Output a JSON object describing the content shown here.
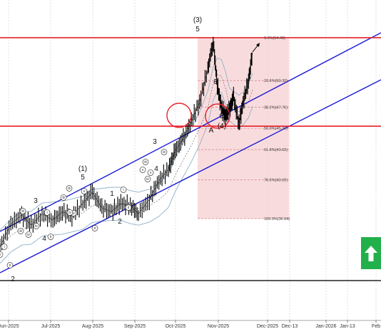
{
  "chart_data": {
    "type": "line",
    "instrument_note": "",
    "x_ticks": [
      "Jun-2025",
      "Jul-2025",
      "Aug-2025",
      "Sep-2025",
      "Oct-2025",
      "Nov-2025",
      "Dec-2025",
      "Dec-13",
      "Jan-2026",
      "Jan-13",
      "Feb"
    ],
    "price_series": [
      {
        "date": "2025-05-20",
        "price": 34.2
      },
      {
        "date": "2025-05-28",
        "price": 36.4
      },
      {
        "date": "2025-06-05",
        "price": 37.3
      },
      {
        "date": "2025-06-12",
        "price": 36.3
      },
      {
        "date": "2025-06-20",
        "price": 37.4
      },
      {
        "date": "2025-06-28",
        "price": 36.8
      },
      {
        "date": "2025-07-05",
        "price": 37.6
      },
      {
        "date": "2025-07-12",
        "price": 37.2
      },
      {
        "date": "2025-07-20",
        "price": 38.4
      },
      {
        "date": "2025-07-27",
        "price": 39.5
      },
      {
        "date": "2025-08-03",
        "price": 38.0
      },
      {
        "date": "2025-08-10",
        "price": 37.6
      },
      {
        "date": "2025-08-17",
        "price": 38.4
      },
      {
        "date": "2025-08-24",
        "price": 38.2
      },
      {
        "date": "2025-08-30",
        "price": 37.4
      },
      {
        "date": "2025-09-07",
        "price": 38.8
      },
      {
        "date": "2025-09-14",
        "price": 40.6
      },
      {
        "date": "2025-09-21",
        "price": 41.7
      },
      {
        "date": "2025-09-26",
        "price": 43.5
      },
      {
        "date": "2025-10-02",
        "price": 44.7
      },
      {
        "date": "2025-10-08",
        "price": 46.4
      },
      {
        "date": "2025-10-14",
        "price": 48.2
      },
      {
        "date": "2025-10-20",
        "price": 51.4
      },
      {
        "date": "2025-10-24",
        "price": 54.1
      },
      {
        "date": "2025-10-27",
        "price": 49.9
      },
      {
        "date": "2025-10-30",
        "price": 47.7
      },
      {
        "date": "2025-11-02",
        "price": 46.9
      },
      {
        "date": "2025-11-05",
        "price": 47.5
      },
      {
        "date": "2025-11-08",
        "price": 48.7
      },
      {
        "date": "2025-11-12",
        "price": 46.1
      },
      {
        "date": "2025-11-15",
        "price": 48.2
      },
      {
        "date": "2025-11-19",
        "price": 50.3
      },
      {
        "date": "2025-11-22",
        "price": 53.1
      }
    ],
    "fib_levels": [
      {
        "label": "0.0%(54.48)",
        "value": 54.48
      },
      {
        "label": "23.6%(50.32)",
        "value": 50.32
      },
      {
        "label": "38.2%(47.76)",
        "value": 47.76
      },
      {
        "label": "50.0%(45.70)",
        "value": 45.7
      },
      {
        "label": "61.8%(43.63)",
        "value": 43.63
      },
      {
        "label": "78.6%(40.69)",
        "value": 40.69
      },
      {
        "label": "100.0%(36.94)",
        "value": 36.94
      }
    ],
    "horizontal_levels": [
      54.48,
      45.9
    ],
    "wave_labels": [
      "(3)",
      "5",
      "B",
      "C",
      "A",
      "(4)",
      "3",
      "4",
      "(1)",
      "5",
      "1",
      "2",
      "3",
      "4",
      "2"
    ],
    "wave_labels_small": [
      "iii",
      "iv",
      "v",
      "iii",
      "iv",
      "v",
      "ii",
      "i",
      "ii",
      "iii",
      "iv",
      "v",
      "i",
      "ii",
      "iii",
      "iv",
      "i",
      "ii",
      "iii",
      "iv",
      "v",
      "ii",
      "iii"
    ],
    "colors": {
      "price": "#000000",
      "support_resistance": "#e8202a",
      "channel": "#1a1ad6",
      "fib_zone": "#f6d0d2",
      "bollinger": "#8fb0c8",
      "buy_signal": "#22b04b"
    },
    "signal": {
      "direction": "up",
      "icon": "arrow-up-icon"
    },
    "grid": true,
    "legend": "none",
    "ylim": [
      31.0,
      58.0
    ]
  }
}
